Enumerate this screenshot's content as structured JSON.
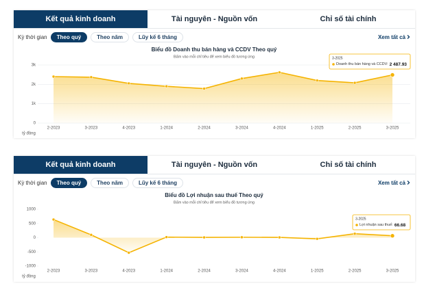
{
  "panels": [
    {
      "tabs": [
        "Kết quả kinh doanh",
        "Tài nguyên - Nguồn vốn",
        "Chỉ số tài chính"
      ],
      "period_label": "Kỳ thời gian",
      "filters": [
        "Theo quý",
        "Theo năm",
        "Lũy kế 6 tháng"
      ],
      "see_all": "Xem tất cả"
    },
    {
      "tabs": [
        "Kết quả kinh doanh",
        "Tài nguyên - Nguồn vốn",
        "Chỉ số tài chính"
      ],
      "period_label": "Kỳ thời gian",
      "filters": [
        "Theo quý",
        "Theo năm",
        "Lũy kế 6 tháng"
      ],
      "see_all": "Xem tất cả"
    }
  ],
  "chart_data": [
    {
      "type": "area",
      "title": "Biểu đồ Doanh thu bán hàng và CCDV Theo quý",
      "subtitle": "Bấm vào mỗi chỉ tiêu để xem biểu đồ tương ứng",
      "y_label": "tỷ đồng",
      "categories": [
        "2-2023",
        "3-2023",
        "4-2023",
        "1-2024",
        "2-2024",
        "3-2024",
        "4-2024",
        "1-2025",
        "2-2025",
        "3-2025"
      ],
      "values": [
        2400,
        2370,
        2050,
        1900,
        1780,
        2300,
        2620,
        2200,
        2080,
        2487.93
      ],
      "value_labels": [
        null,
        null,
        null,
        null,
        null,
        null,
        null,
        null,
        null,
        "2 487.93"
      ],
      "color": "#f5b300",
      "ylim": [
        0,
        3000
      ],
      "yticks": [
        0,
        {
          "value": 1000,
          "label": "1k"
        },
        {
          "value": 2000,
          "label": "2k"
        },
        {
          "value": 3000,
          "label": "3k"
        }
      ],
      "grid": true,
      "tooltip": {
        "label": "Doanh thu bán hàng và CCDV:"
      }
    },
    {
      "type": "area",
      "title": "Biểu đồ Lợi nhuận sau thuế Theo quý",
      "subtitle": "Bấm vào mỗi chỉ tiêu để xem biểu đồ tương ứng",
      "y_label": "tỷ đồng",
      "categories": [
        "2-2023",
        "3-2023",
        "4-2023",
        "1-2024",
        "2-2024",
        "3-2024",
        "4-2024",
        "1-2025",
        "2-2025",
        "3-2025"
      ],
      "values": [
        640,
        100,
        -530,
        20,
        10,
        15,
        10,
        -40,
        140,
        66.68
      ],
      "color": "#f5b300",
      "ylim": [
        -1000,
        1000
      ],
      "yticks": [
        -1000,
        -500,
        0,
        500,
        1000
      ],
      "grid": false,
      "tooltip": {
        "label": "Lợi nhuận sau thuế:"
      }
    }
  ]
}
